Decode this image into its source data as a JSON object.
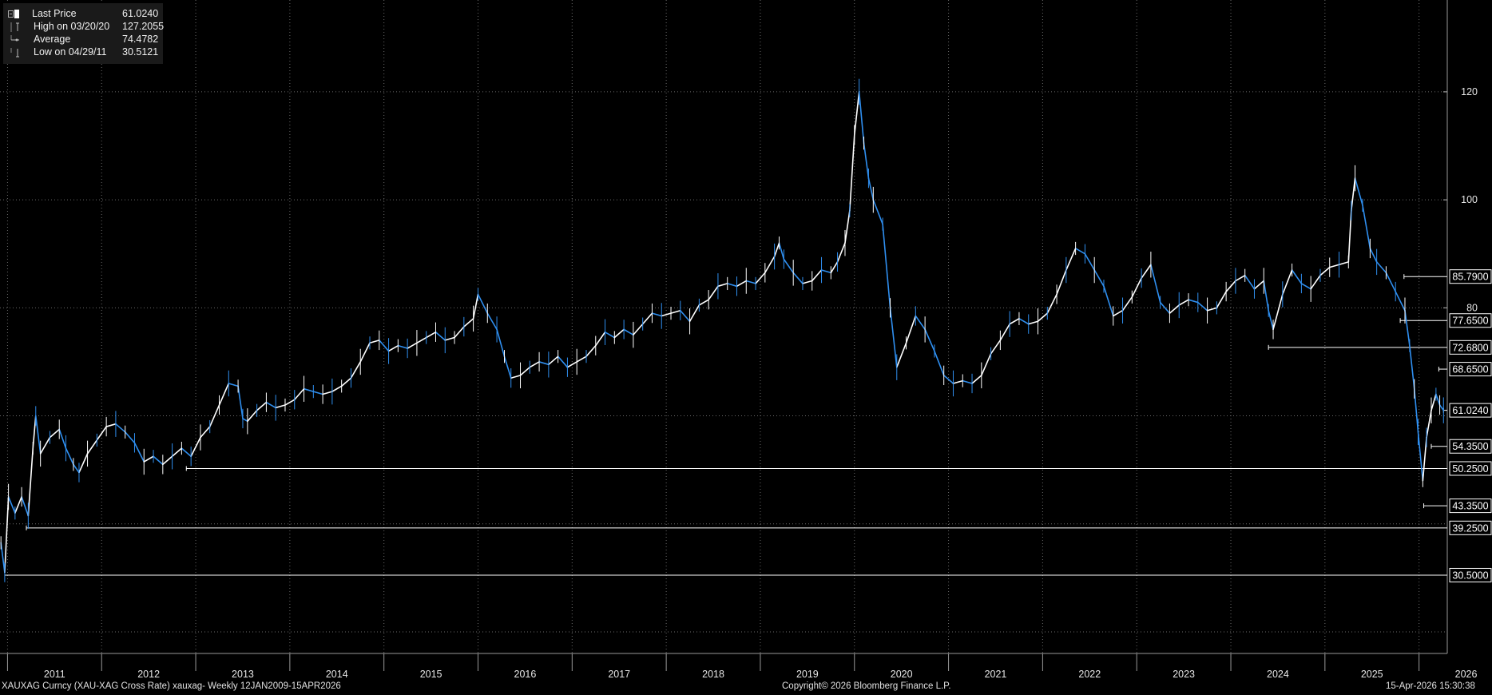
{
  "legend": {
    "last_price": {
      "label": "Last Price",
      "value": "61.0240"
    },
    "high": {
      "label": "High on 03/20/20",
      "value": "127.2055"
    },
    "average": {
      "label": "Average",
      "value": "74.4782"
    },
    "low": {
      "label": "Low on 04/29/11",
      "value": "30.5121"
    }
  },
  "footer": {
    "left": "XAUXAG Curncy (XAU-XAG Cross Rate) xauxag- Weekly 12JAN2009-15APR2026",
    "center": "Copyright© 2026 Bloomberg Finance L.P.",
    "right": "15-Apr-2026 15:30:38"
  },
  "colors": {
    "background": "#000000",
    "up": "#ffffff",
    "down": "#2f8ff0",
    "grid": "#6a6a6a",
    "level_line": "#ffffff"
  },
  "chart_data": {
    "type": "line",
    "title": "",
    "xlabel": "",
    "ylabel": "",
    "x_range": [
      2010.92,
      2026.3
    ],
    "ylim": [
      16,
      137
    ],
    "y_ticks": [
      {
        "value": 80,
        "label": "80"
      },
      {
        "value": 100,
        "label": "100"
      },
      {
        "value": 120,
        "label": "120"
      }
    ],
    "x_tick_labels": [
      "2011",
      "2012",
      "2013",
      "2014",
      "2015",
      "2016",
      "2017",
      "2018",
      "2019",
      "2020",
      "2021",
      "2022",
      "2023",
      "2024",
      "2025",
      "2026"
    ],
    "grid": true,
    "legend_position": "top-left",
    "series": [
      {
        "values": [
          [
            2010.93,
            36.5
          ],
          [
            2010.97,
            31.0
          ],
          [
            2011.01,
            45.0
          ],
          [
            2011.08,
            42.0
          ],
          [
            2011.15,
            45.0
          ],
          [
            2011.22,
            41.5
          ],
          [
            2011.27,
            54.0
          ],
          [
            2011.3,
            60.0
          ],
          [
            2011.35,
            53.0
          ],
          [
            2011.45,
            56.0
          ],
          [
            2011.55,
            57.5
          ],
          [
            2011.62,
            54.0
          ],
          [
            2011.7,
            51.0
          ],
          [
            2011.76,
            49.5
          ],
          [
            2011.85,
            53.0
          ],
          [
            2011.95,
            55.5
          ],
          [
            2012.05,
            58.0
          ],
          [
            2012.15,
            58.5
          ],
          [
            2012.25,
            57.0
          ],
          [
            2012.35,
            55.0
          ],
          [
            2012.45,
            51.5
          ],
          [
            2012.55,
            52.5
          ],
          [
            2012.65,
            51.0
          ],
          [
            2012.75,
            52.5
          ],
          [
            2012.85,
            54.0
          ],
          [
            2012.95,
            52.5
          ],
          [
            2013.05,
            56.0
          ],
          [
            2013.15,
            58.0
          ],
          [
            2013.25,
            62.0
          ],
          [
            2013.35,
            66.0
          ],
          [
            2013.45,
            65.5
          ],
          [
            2013.5,
            59.5
          ],
          [
            2013.55,
            59.0
          ],
          [
            2013.65,
            61.0
          ],
          [
            2013.75,
            62.5
          ],
          [
            2013.85,
            61.5
          ],
          [
            2013.95,
            62.0
          ],
          [
            2014.05,
            63.0
          ],
          [
            2014.15,
            65.0
          ],
          [
            2014.25,
            64.5
          ],
          [
            2014.35,
            64.0
          ],
          [
            2014.45,
            64.5
          ],
          [
            2014.55,
            65.5
          ],
          [
            2014.65,
            67.0
          ],
          [
            2014.75,
            70.0
          ],
          [
            2014.85,
            73.5
          ],
          [
            2014.95,
            74.0
          ],
          [
            2015.05,
            72.0
          ],
          [
            2015.15,
            73.0
          ],
          [
            2015.25,
            72.5
          ],
          [
            2015.35,
            73.5
          ],
          [
            2015.45,
            74.5
          ],
          [
            2015.55,
            75.5
          ],
          [
            2015.65,
            74.0
          ],
          [
            2015.75,
            74.5
          ],
          [
            2015.85,
            76.5
          ],
          [
            2015.95,
            78.0
          ],
          [
            2016.0,
            82.5
          ],
          [
            2016.1,
            79.0
          ],
          [
            2016.2,
            76.0
          ],
          [
            2016.28,
            71.0
          ],
          [
            2016.35,
            67.0
          ],
          [
            2016.45,
            67.5
          ],
          [
            2016.55,
            69.0
          ],
          [
            2016.65,
            70.0
          ],
          [
            2016.75,
            69.5
          ],
          [
            2016.85,
            71.0
          ],
          [
            2016.95,
            69.0
          ],
          [
            2017.05,
            70.0
          ],
          [
            2017.15,
            71.0
          ],
          [
            2017.25,
            73.0
          ],
          [
            2017.35,
            75.5
          ],
          [
            2017.45,
            74.5
          ],
          [
            2017.55,
            76.0
          ],
          [
            2017.65,
            75.0
          ],
          [
            2017.75,
            77.0
          ],
          [
            2017.85,
            79.0
          ],
          [
            2017.95,
            78.5
          ],
          [
            2018.05,
            79.0
          ],
          [
            2018.15,
            79.5
          ],
          [
            2018.25,
            77.5
          ],
          [
            2018.35,
            80.5
          ],
          [
            2018.45,
            81.5
          ],
          [
            2018.55,
            84.0
          ],
          [
            2018.65,
            84.5
          ],
          [
            2018.75,
            84.0
          ],
          [
            2018.85,
            85.0
          ],
          [
            2018.95,
            84.5
          ],
          [
            2019.05,
            86.5
          ],
          [
            2019.15,
            89.5
          ],
          [
            2019.2,
            92.0
          ],
          [
            2019.25,
            89.0
          ],
          [
            2019.35,
            86.5
          ],
          [
            2019.45,
            84.5
          ],
          [
            2019.55,
            85.0
          ],
          [
            2019.65,
            87.0
          ],
          [
            2019.75,
            86.5
          ],
          [
            2019.82,
            88.5
          ],
          [
            2019.9,
            92.0
          ],
          [
            2019.95,
            98.0
          ],
          [
            2020.0,
            112.0
          ],
          [
            2020.05,
            120.0
          ],
          [
            2020.1,
            110.5
          ],
          [
            2020.15,
            104.0
          ],
          [
            2020.2,
            100.0
          ],
          [
            2020.3,
            95.5
          ],
          [
            2020.38,
            80.0
          ],
          [
            2020.45,
            69.0
          ],
          [
            2020.55,
            73.5
          ],
          [
            2020.65,
            78.5
          ],
          [
            2020.75,
            76.0
          ],
          [
            2020.85,
            72.0
          ],
          [
            2020.95,
            67.5
          ],
          [
            2021.05,
            66.0
          ],
          [
            2021.15,
            66.5
          ],
          [
            2021.25,
            66.0
          ],
          [
            2021.35,
            67.5
          ],
          [
            2021.45,
            71.5
          ],
          [
            2021.55,
            74.0
          ],
          [
            2021.65,
            77.0
          ],
          [
            2021.75,
            78.0
          ],
          [
            2021.85,
            77.0
          ],
          [
            2021.95,
            77.5
          ],
          [
            2022.05,
            79.0
          ],
          [
            2022.15,
            82.5
          ],
          [
            2022.25,
            87.0
          ],
          [
            2022.35,
            91.0
          ],
          [
            2022.45,
            90.0
          ],
          [
            2022.55,
            87.0
          ],
          [
            2022.65,
            84.0
          ],
          [
            2022.75,
            78.5
          ],
          [
            2022.85,
            79.5
          ],
          [
            2022.95,
            82.0
          ],
          [
            2023.05,
            85.5
          ],
          [
            2023.15,
            88.0
          ],
          [
            2023.25,
            81.0
          ],
          [
            2023.35,
            79.0
          ],
          [
            2023.45,
            80.5
          ],
          [
            2023.55,
            81.5
          ],
          [
            2023.65,
            81.0
          ],
          [
            2023.75,
            79.5
          ],
          [
            2023.85,
            80.0
          ],
          [
            2023.95,
            83.0
          ],
          [
            2024.05,
            85.0
          ],
          [
            2024.15,
            86.0
          ],
          [
            2024.25,
            83.5
          ],
          [
            2024.35,
            85.0
          ],
          [
            2024.4,
            79.5
          ],
          [
            2024.45,
            76.0
          ],
          [
            2024.55,
            82.5
          ],
          [
            2024.65,
            87.0
          ],
          [
            2024.75,
            84.5
          ],
          [
            2024.85,
            83.5
          ],
          [
            2024.95,
            86.0
          ],
          [
            2025.05,
            87.5
          ],
          [
            2025.15,
            88.0
          ],
          [
            2025.25,
            88.5
          ],
          [
            2025.28,
            98.0
          ],
          [
            2025.32,
            104.0
          ],
          [
            2025.4,
            99.0
          ],
          [
            2025.48,
            91.0
          ],
          [
            2025.55,
            88.5
          ],
          [
            2025.65,
            86.5
          ],
          [
            2025.75,
            83.0
          ],
          [
            2025.85,
            79.5
          ],
          [
            2025.9,
            73.0
          ],
          [
            2025.95,
            65.0
          ],
          [
            2025.99,
            57.0
          ],
          [
            2026.04,
            48.0
          ],
          [
            2026.08,
            56.0
          ],
          [
            2026.13,
            61.0
          ],
          [
            2026.18,
            64.0
          ],
          [
            2026.22,
            62.0
          ],
          [
            2026.26,
            61.02
          ]
        ]
      }
    ],
    "levels": [
      {
        "value": 85.79,
        "label": "85.7900",
        "from": 2025.84
      },
      {
        "value": 77.65,
        "label": "77.6500",
        "from": 2025.8
      },
      {
        "value": 72.68,
        "label": "72.6800",
        "from": 2024.4
      },
      {
        "value": 68.65,
        "label": "68.6500",
        "from": 2026.21
      },
      {
        "value": 61.024,
        "label": "61.0240",
        "from": 2026.26
      },
      {
        "value": 54.35,
        "label": "54.3500",
        "from": 2026.13
      },
      {
        "value": 50.25,
        "label": "50.2500",
        "from": 2012.9
      },
      {
        "value": 43.35,
        "label": "43.3500",
        "from": 2026.05
      },
      {
        "value": 39.25,
        "label": "39.2500",
        "from": 2011.2
      },
      {
        "value": 30.5,
        "label": "30.5000",
        "from": 2010.97
      }
    ]
  }
}
